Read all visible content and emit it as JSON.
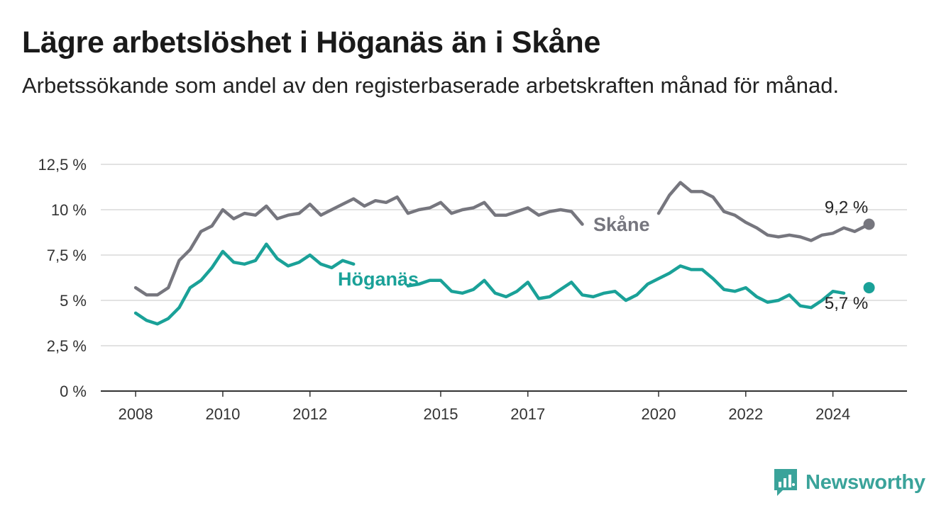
{
  "header": {
    "title": "Lägre arbetslöshet i Höganäs än i Skåne",
    "subtitle": "Arbetssökande som andel av den registerbaserade arbetskraften månad för månad."
  },
  "brand": {
    "name": "Newsworthy",
    "icon": "newsworthy-logo-icon",
    "color": "#3aa39a"
  },
  "chart_data": {
    "type": "line",
    "title": "Lägre arbetslöshet i Höganäs än i Skåne",
    "subtitle": "Arbetssökande som andel av den registerbaserade arbetskraften månad för månad.",
    "xlabel": "",
    "ylabel": "",
    "ylim": [
      0,
      12.5
    ],
    "y_ticks": [
      0,
      2.5,
      5,
      7.5,
      10,
      12.5
    ],
    "y_tick_labels": [
      "0 %",
      "2,5 %",
      "5 %",
      "7,5 %",
      "10 %",
      "12,5 %"
    ],
    "x_ticks": [
      2008,
      2010,
      2012,
      2015,
      2017,
      2020,
      2022,
      2024
    ],
    "x_tick_labels": [
      "2008",
      "2010",
      "2012",
      "2015",
      "2017",
      "2020",
      "2022",
      "2024"
    ],
    "xlim": [
      2007.2,
      2025.7
    ],
    "grid": "horizontal",
    "legend": "inline labels",
    "series": [
      {
        "name": "Skåne",
        "color": "#76767e",
        "end_label": "9,2 %",
        "x": [
          2008.0,
          2008.25,
          2008.5,
          2008.75,
          2009.0,
          2009.25,
          2009.5,
          2009.75,
          2010.0,
          2010.25,
          2010.5,
          2010.75,
          2011.0,
          2011.25,
          2011.5,
          2011.75,
          2012.0,
          2012.25,
          2012.5,
          2012.75,
          2013.0,
          2013.25,
          2013.5,
          2013.75,
          2014.0,
          2014.25,
          2014.5,
          2014.75,
          2015.0,
          2015.25,
          2015.5,
          2015.75,
          2016.0,
          2016.25,
          2016.5,
          2016.75,
          2017.0,
          2017.25,
          2017.5,
          2017.75,
          2018.0,
          2018.25,
          2018.5,
          2018.75,
          2019.0,
          2019.25,
          2019.5,
          2019.75,
          2020.0,
          2020.25,
          2020.5,
          2020.75,
          2021.0,
          2021.25,
          2021.5,
          2021.75,
          2022.0,
          2022.25,
          2022.5,
          2022.75,
          2023.0,
          2023.25,
          2023.5,
          2023.75,
          2024.0,
          2024.25,
          2024.5,
          2024.75,
          2024.83
        ],
        "values": [
          5.7,
          5.3,
          5.3,
          5.7,
          7.2,
          7.8,
          8.8,
          9.1,
          10.0,
          9.5,
          9.8,
          9.7,
          10.2,
          9.5,
          9.7,
          9.8,
          10.3,
          9.7,
          10.0,
          10.3,
          10.6,
          10.2,
          10.5,
          10.4,
          10.7,
          9.8,
          10.0,
          10.1,
          10.4,
          9.8,
          10.0,
          10.1,
          10.4,
          9.7,
          9.7,
          9.9,
          10.1,
          9.7,
          9.9,
          10.0,
          9.9,
          9.2,
          null,
          null,
          null,
          null,
          null,
          null,
          9.8,
          10.8,
          11.5,
          11.0,
          11.0,
          10.7,
          9.9,
          9.7,
          9.3,
          9.0,
          8.6,
          8.5,
          8.6,
          8.5,
          8.3,
          8.6,
          8.7,
          9.0,
          8.8,
          9.1,
          9.2
        ]
      },
      {
        "name": "Höganäs",
        "color": "#1aa198",
        "end_label": "5,7 %",
        "x": [
          2008.0,
          2008.25,
          2008.5,
          2008.75,
          2009.0,
          2009.25,
          2009.5,
          2009.75,
          2010.0,
          2010.25,
          2010.5,
          2010.75,
          2011.0,
          2011.25,
          2011.5,
          2011.75,
          2012.0,
          2012.25,
          2012.5,
          2012.75,
          2013.0,
          2013.25,
          2013.5,
          2013.75,
          2014.0,
          2014.25,
          2014.5,
          2014.75,
          2015.0,
          2015.25,
          2015.5,
          2015.75,
          2016.0,
          2016.25,
          2016.5,
          2016.75,
          2017.0,
          2017.25,
          2017.5,
          2017.75,
          2018.0,
          2018.25,
          2018.5,
          2018.75,
          2019.0,
          2019.25,
          2019.5,
          2019.75,
          2020.0,
          2020.25,
          2020.5,
          2020.75,
          2021.0,
          2021.25,
          2021.5,
          2021.75,
          2022.0,
          2022.25,
          2022.5,
          2022.75,
          2023.0,
          2023.25,
          2023.5,
          2023.75,
          2024.0,
          2024.25,
          2024.5,
          2024.75,
          2024.83
        ],
        "values": [
          4.3,
          3.9,
          3.7,
          4.0,
          4.6,
          5.7,
          6.1,
          6.8,
          7.7,
          7.1,
          7.0,
          7.2,
          8.1,
          7.3,
          6.9,
          7.1,
          7.5,
          7.0,
          6.8,
          7.2,
          7.0,
          null,
          null,
          null,
          null,
          5.8,
          5.9,
          6.1,
          6.1,
          5.5,
          5.4,
          5.6,
          6.1,
          5.4,
          5.2,
          5.5,
          6.0,
          5.1,
          5.2,
          5.6,
          6.0,
          5.3,
          5.2,
          5.4,
          5.5,
          5.0,
          5.3,
          5.9,
          6.2,
          6.5,
          6.9,
          6.7,
          6.7,
          6.2,
          5.6,
          5.5,
          5.7,
          5.2,
          4.9,
          5.0,
          5.3,
          4.7,
          4.6,
          5.0,
          5.5,
          5.4,
          null,
          5.6,
          5.7
        ]
      }
    ]
  }
}
